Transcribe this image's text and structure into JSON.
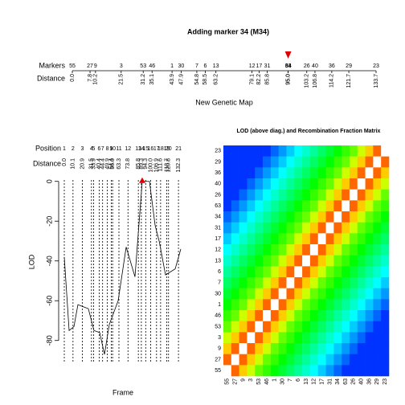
{
  "chart_data": [
    {
      "type": "map",
      "title": "Adding marker 34 (M34)",
      "row_labels": [
        "Markers",
        "Distance"
      ],
      "markers": [
        55,
        27,
        9,
        3,
        53,
        46,
        1,
        30,
        7,
        6,
        13,
        12,
        17,
        31,
        63,
        34,
        26,
        40,
        36,
        29,
        23
      ],
      "distances": [
        0.0,
        7.8,
        10.2,
        21.5,
        31.2,
        35.1,
        43.9,
        47.9,
        54.8,
        58.5,
        63.2,
        79.1,
        82.2,
        85.8,
        95.0,
        95.0,
        103.2,
        106.8,
        114.2,
        121.7,
        133.7
      ],
      "distance_labels": [
        "0.0",
        "7.8",
        "10.2",
        "21.5",
        "31.2",
        "35.1",
        "43.9",
        "47.9",
        "54.8",
        "58.5",
        "63.2",
        "79.1",
        "82.2",
        "85.8",
        "95.0",
        "95.0",
        "103.2",
        "106.8",
        "114.2",
        "121.7",
        "133.7"
      ],
      "highlight": 15,
      "highlight_color": "#e00000",
      "xlim": [
        0,
        133.7
      ],
      "xlabel": "New Genetic Map"
    },
    {
      "type": "line",
      "position_label": "Position",
      "distance_label": "Distance",
      "positions": [
        1,
        2,
        3,
        4,
        5,
        6,
        7,
        8,
        9,
        10,
        11,
        12,
        13,
        14,
        15,
        16,
        17,
        18,
        19,
        20,
        21
      ],
      "position_distances": [
        0.0,
        10.1,
        20.9,
        31.5,
        33.9,
        40.4,
        44.4,
        49.9,
        54.4,
        56.0,
        63.3,
        73.8,
        85.8,
        89.3,
        94.3,
        100.0,
        106.9,
        111.6,
        118.7,
        120.8,
        132.3
      ],
      "position_distance_labels": [
        "0.0",
        "10.1",
        "20.9",
        "31.5",
        "33.9",
        "40.4",
        "44.4",
        "49.9",
        "54.4",
        "56.0",
        "63.3",
        "73.8",
        "85.8",
        "89.3",
        "94.3",
        "100.0",
        "106.9",
        "111.6",
        "118.7",
        "120.8",
        "132.3"
      ],
      "x": [
        0,
        5.6,
        11.2,
        15.8,
        27.9,
        34.4,
        41,
        46.6,
        52.1,
        62.4,
        71.7,
        81.9,
        90.3,
        98.7,
        105.2,
        109.9,
        117.3,
        128.5,
        135
      ],
      "values": [
        -38,
        -75,
        -73,
        -62,
        -64,
        -75,
        -76,
        -87,
        -72,
        -60,
        -33,
        -48,
        0,
        0,
        -22,
        -30,
        -47,
        -44,
        -34
      ],
      "xlim": [
        0,
        135
      ],
      "ylim": [
        -89,
        1.5
      ],
      "yticks": [
        0,
        -20,
        -40,
        -60,
        -80
      ],
      "ylabel": "LOD",
      "xlabel": "Frame",
      "color": "#000000",
      "peak_color": "#e00000"
    },
    {
      "type": "heatmap",
      "title": "LOD (above diag.) and Recombination Fraction Matrix",
      "row_labels": [
        23,
        29,
        36,
        40,
        26,
        63,
        34,
        31,
        17,
        12,
        13,
        6,
        7,
        30,
        1,
        46,
        53,
        3,
        9,
        27,
        55
      ],
      "col_labels": [
        55,
        27,
        9,
        3,
        53,
        46,
        1,
        30,
        7,
        6,
        13,
        12,
        17,
        31,
        34,
        63,
        26,
        40,
        36,
        29,
        23
      ],
      "color_scale": "rainbow",
      "matrix": [
        [
          0.05,
          0.05,
          0.05,
          0.05,
          0.05,
          0.05,
          0.1,
          0.15,
          0.2,
          0.25,
          0.3,
          0.35,
          0.4,
          0.45,
          0.5,
          0.55,
          0.6,
          0.7,
          0.8,
          0.9,
          null
        ],
        [
          0.05,
          0.05,
          0.05,
          0.05,
          0.05,
          0.1,
          0.15,
          0.2,
          0.25,
          0.3,
          0.35,
          0.4,
          0.45,
          0.5,
          0.55,
          0.6,
          0.7,
          0.8,
          0.9,
          null,
          0.9
        ],
        [
          0.05,
          0.05,
          0.05,
          0.05,
          0.1,
          0.15,
          0.2,
          0.25,
          0.3,
          0.35,
          0.4,
          0.45,
          0.5,
          0.55,
          0.6,
          0.7,
          0.8,
          0.9,
          null,
          0.9,
          0.8
        ],
        [
          0.05,
          0.05,
          0.05,
          0.1,
          0.15,
          0.2,
          0.25,
          0.3,
          0.35,
          0.4,
          0.45,
          0.5,
          0.55,
          0.6,
          0.7,
          0.8,
          0.9,
          null,
          0.9,
          0.8,
          0.7
        ],
        [
          0.05,
          0.05,
          0.1,
          0.15,
          0.2,
          0.25,
          0.3,
          0.35,
          0.4,
          0.45,
          0.5,
          0.55,
          0.6,
          0.7,
          0.8,
          0.9,
          null,
          0.9,
          0.8,
          0.7,
          0.6
        ],
        [
          0.05,
          0.1,
          0.15,
          0.2,
          0.25,
          0.3,
          0.35,
          0.4,
          0.45,
          0.5,
          0.55,
          0.6,
          0.7,
          0.8,
          0.9,
          null,
          0.9,
          0.8,
          0.7,
          0.6,
          0.55
        ],
        [
          0.1,
          0.15,
          0.2,
          0.25,
          0.3,
          0.35,
          0.4,
          0.45,
          0.5,
          0.55,
          0.6,
          0.7,
          0.8,
          0.9,
          null,
          0.9,
          0.8,
          0.7,
          0.6,
          0.55,
          0.5
        ],
        [
          0.15,
          0.2,
          0.25,
          0.3,
          0.35,
          0.4,
          0.45,
          0.5,
          0.55,
          0.6,
          0.7,
          0.8,
          0.9,
          null,
          0.9,
          0.8,
          0.7,
          0.6,
          0.55,
          0.5,
          0.45
        ],
        [
          0.2,
          0.25,
          0.3,
          0.35,
          0.4,
          0.45,
          0.5,
          0.55,
          0.6,
          0.7,
          0.8,
          0.9,
          null,
          0.9,
          0.8,
          0.7,
          0.6,
          0.55,
          0.5,
          0.45,
          0.4
        ],
        [
          0.25,
          0.3,
          0.35,
          0.4,
          0.45,
          0.5,
          0.55,
          0.6,
          0.7,
          0.8,
          0.9,
          null,
          0.9,
          0.8,
          0.7,
          0.6,
          0.55,
          0.5,
          0.45,
          0.4,
          0.35
        ],
        [
          0.3,
          0.35,
          0.4,
          0.45,
          0.5,
          0.55,
          0.6,
          0.7,
          0.8,
          0.9,
          null,
          0.9,
          0.8,
          0.7,
          0.6,
          0.55,
          0.5,
          0.45,
          0.4,
          0.35,
          0.3
        ],
        [
          0.35,
          0.4,
          0.45,
          0.5,
          0.55,
          0.6,
          0.7,
          0.8,
          0.9,
          null,
          0.9,
          0.8,
          0.7,
          0.6,
          0.55,
          0.5,
          0.45,
          0.4,
          0.35,
          0.3,
          0.25
        ],
        [
          0.4,
          0.45,
          0.5,
          0.55,
          0.6,
          0.7,
          0.8,
          0.9,
          null,
          0.9,
          0.8,
          0.7,
          0.6,
          0.55,
          0.5,
          0.45,
          0.4,
          0.35,
          0.3,
          0.25,
          0.2
        ],
        [
          0.45,
          0.5,
          0.55,
          0.6,
          0.7,
          0.8,
          0.9,
          null,
          0.9,
          0.8,
          0.7,
          0.6,
          0.55,
          0.5,
          0.45,
          0.4,
          0.35,
          0.3,
          0.25,
          0.2,
          0.15
        ],
        [
          0.5,
          0.55,
          0.6,
          0.7,
          0.8,
          0.9,
          null,
          0.9,
          0.8,
          0.7,
          0.6,
          0.55,
          0.5,
          0.45,
          0.4,
          0.35,
          0.3,
          0.25,
          0.2,
          0.15,
          0.1
        ],
        [
          0.55,
          0.6,
          0.7,
          0.8,
          0.9,
          null,
          0.9,
          0.8,
          0.7,
          0.6,
          0.55,
          0.5,
          0.45,
          0.4,
          0.35,
          0.3,
          0.25,
          0.2,
          0.15,
          0.1,
          0.05
        ],
        [
          0.6,
          0.7,
          0.8,
          0.9,
          null,
          0.9,
          0.8,
          0.7,
          0.6,
          0.55,
          0.5,
          0.45,
          0.4,
          0.35,
          0.3,
          0.25,
          0.2,
          0.15,
          0.1,
          0.05,
          0.05
        ],
        [
          0.7,
          0.8,
          0.9,
          null,
          0.9,
          0.8,
          0.7,
          0.6,
          0.55,
          0.5,
          0.45,
          0.4,
          0.35,
          0.3,
          0.25,
          0.2,
          0.15,
          0.1,
          0.05,
          0.05,
          0.05
        ],
        [
          0.8,
          0.9,
          null,
          0.9,
          0.8,
          0.7,
          0.6,
          0.55,
          0.5,
          0.45,
          0.4,
          0.35,
          0.3,
          0.25,
          0.2,
          0.15,
          0.1,
          0.05,
          0.05,
          0.05,
          0.05
        ],
        [
          0.9,
          null,
          0.9,
          0.8,
          0.7,
          0.6,
          0.55,
          0.5,
          0.45,
          0.4,
          0.35,
          0.3,
          0.25,
          0.2,
          0.15,
          0.1,
          0.05,
          0.05,
          0.05,
          0.05,
          0.05
        ],
        [
          null,
          0.9,
          0.8,
          0.7,
          0.6,
          0.55,
          0.5,
          0.45,
          0.4,
          0.35,
          0.3,
          0.25,
          0.2,
          0.15,
          0.1,
          0.05,
          0.05,
          0.05,
          0.05,
          0.05,
          0.05
        ]
      ]
    }
  ]
}
